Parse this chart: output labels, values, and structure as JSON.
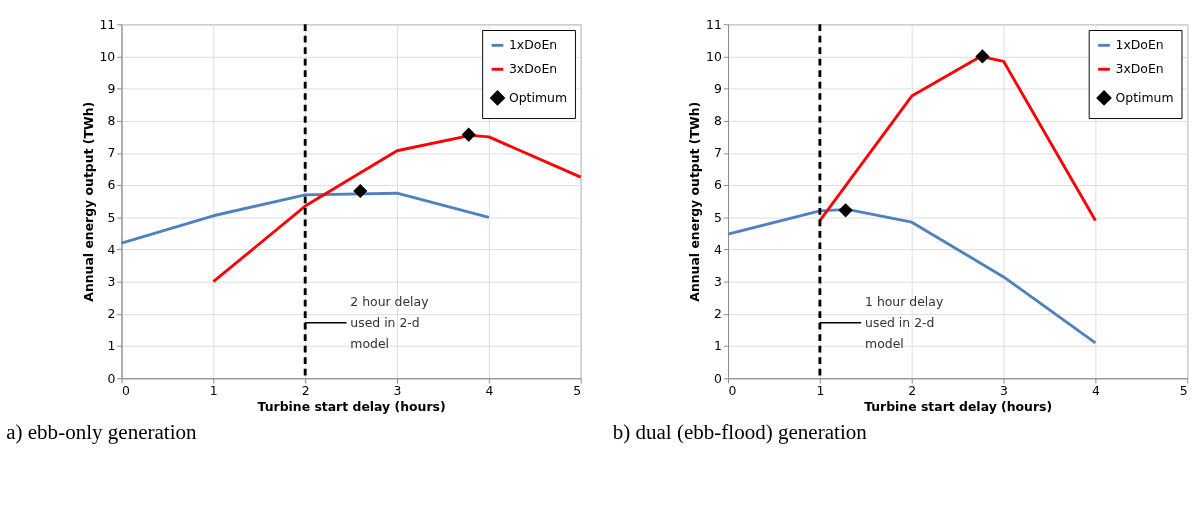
{
  "chart_data": [
    {
      "type": "line",
      "xlabel": "Turbine start delay (hours)",
      "ylabel": "Annual energy output  (TWh)",
      "xlim": [
        0,
        5
      ],
      "xticks": [
        0,
        1,
        2,
        3,
        4,
        5
      ],
      "ylim": [
        0,
        11
      ],
      "yticks": [
        0,
        1,
        2,
        3,
        4,
        5,
        6,
        7,
        8,
        9,
        10,
        11
      ],
      "grid": true,
      "legend": "top right",
      "series": [
        {
          "name": "1xDoEn",
          "color": "#4f81bd",
          "x": [
            0,
            1,
            2,
            3,
            4
          ],
          "values": [
            4.2,
            5.05,
            5.7,
            5.75,
            5.0
          ]
        },
        {
          "name": "3xDoEn",
          "color": "#ff0000",
          "x": [
            1,
            2,
            3,
            3.8,
            4,
            5
          ],
          "values": [
            3.0,
            5.35,
            7.07,
            7.55,
            7.5,
            6.25
          ]
        },
        {
          "name": "Optimum",
          "type": "scatter",
          "marker": "diamond",
          "color": "#000000",
          "x": [
            2.6,
            3.78
          ],
          "values": [
            5.82,
            7.57
          ]
        }
      ],
      "ref_lines": [
        {
          "axis": "x",
          "value": 2,
          "color": "#000000",
          "line_style": "dashed"
        }
      ],
      "annotations": [
        "a) ebb-only generation",
        "2 hour delay\nused in 2-d\nmodel"
      ]
    },
    {
      "type": "line",
      "xlabel": "Turbine start delay (hours)",
      "ylabel": "Annual energy output  (TWh)",
      "xlim": [
        0,
        5
      ],
      "xticks": [
        0,
        1,
        2,
        3,
        4,
        5
      ],
      "ylim": [
        0,
        11
      ],
      "yticks": [
        0,
        1,
        2,
        3,
        4,
        5,
        6,
        7,
        8,
        9,
        10,
        11
      ],
      "grid": true,
      "legend": "top right",
      "series": [
        {
          "name": "1xDoEn",
          "color": "#4f81bd",
          "x": [
            0,
            1,
            1.3,
            2,
            3,
            4
          ],
          "values": [
            4.48,
            5.2,
            5.25,
            4.85,
            3.15,
            1.1
          ]
        },
        {
          "name": "3xDoEn",
          "color": "#ff0000",
          "x": [
            1,
            2,
            2.75,
            3,
            4
          ],
          "values": [
            4.9,
            8.77,
            10.0,
            9.85,
            4.9
          ]
        },
        {
          "name": "Optimum",
          "type": "scatter",
          "marker": "diamond",
          "color": "#000000",
          "x": [
            1.28,
            2.77
          ],
          "values": [
            5.22,
            10.0
          ]
        }
      ],
      "ref_lines": [
        {
          "axis": "x",
          "value": 1,
          "color": "#000000",
          "line_style": "dashed"
        }
      ],
      "annotations": [
        "b) dual (ebb-flood) generation",
        "1 hour delay\nused in 2-d\nmodel"
      ]
    }
  ]
}
